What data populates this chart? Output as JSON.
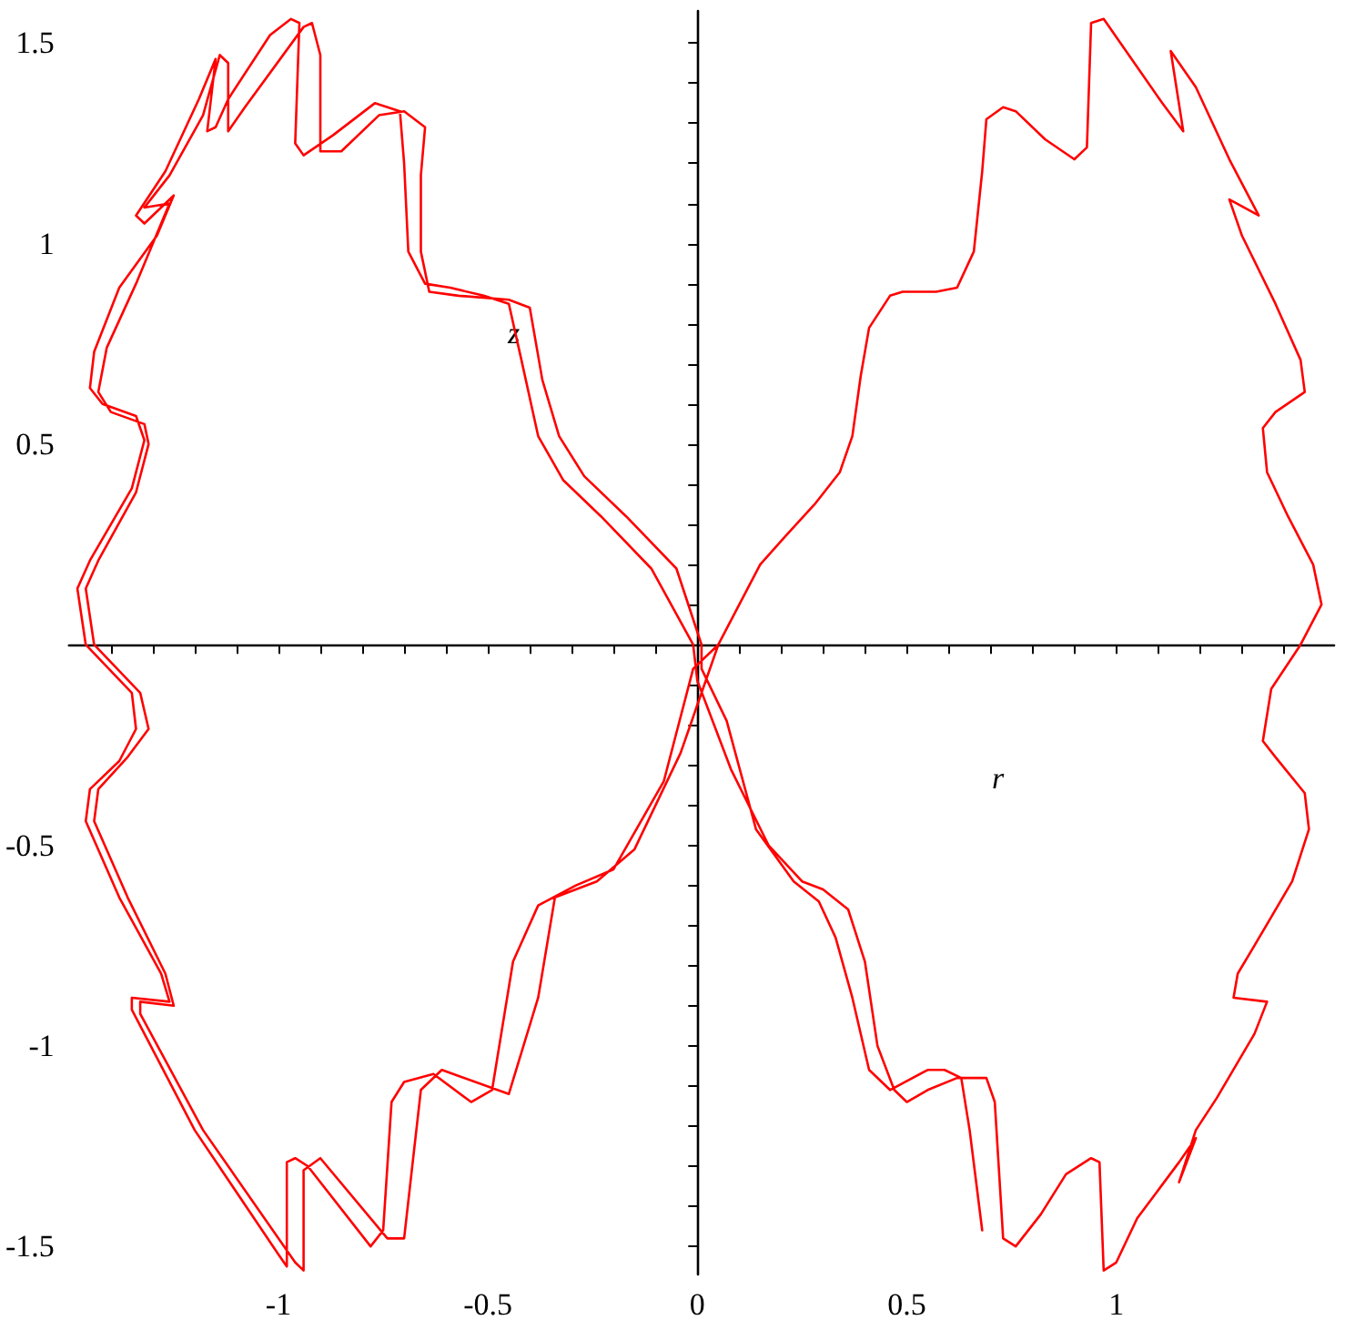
{
  "chart_data": {
    "type": "line",
    "xlabel": "r",
    "ylabel": "z",
    "xlim": [
      -1.5,
      1.52
    ],
    "ylim": [
      -1.57,
      1.58
    ],
    "xticks": [
      {
        "value": -1.4,
        "label": null
      },
      {
        "value": -1.3,
        "label": null
      },
      {
        "value": -1.2,
        "label": null
      },
      {
        "value": -1.1,
        "label": null
      },
      {
        "value": -1,
        "label": "-1"
      },
      {
        "value": -0.9,
        "label": null
      },
      {
        "value": -0.8,
        "label": null
      },
      {
        "value": -0.7,
        "label": null
      },
      {
        "value": -0.6,
        "label": null
      },
      {
        "value": -0.5,
        "label": "-0.5"
      },
      {
        "value": -0.4,
        "label": null
      },
      {
        "value": -0.3,
        "label": null
      },
      {
        "value": -0.2,
        "label": null
      },
      {
        "value": -0.1,
        "label": null
      },
      0,
      {
        "value": 0.1,
        "label": null
      },
      {
        "value": 0.2,
        "label": null
      },
      {
        "value": 0.3,
        "label": null
      },
      {
        "value": 0.4,
        "label": null
      },
      0.5,
      {
        "value": 0.6,
        "label": null
      },
      {
        "value": 0.7,
        "label": null
      },
      {
        "value": 0.8,
        "label": null
      },
      {
        "value": 0.9,
        "label": null
      },
      1,
      {
        "value": 1.1,
        "label": null
      },
      {
        "value": 1.2,
        "label": null
      },
      {
        "value": 1.3,
        "label": null
      },
      {
        "value": 1.4,
        "label": null
      }
    ],
    "yticks": [
      {
        "value": -1.5,
        "label": "-1.5"
      },
      {
        "value": -1.4,
        "label": null
      },
      {
        "value": -1.3,
        "label": null
      },
      {
        "value": -1.2,
        "label": null
      },
      {
        "value": -1.1,
        "label": null
      },
      {
        "value": -1,
        "label": "-1"
      },
      {
        "value": -0.9,
        "label": null
      },
      {
        "value": -0.8,
        "label": null
      },
      {
        "value": -0.7,
        "label": null
      },
      {
        "value": -0.6,
        "label": null
      },
      {
        "value": -0.5,
        "label": "-0.5"
      },
      {
        "value": -0.4,
        "label": null
      },
      {
        "value": -0.3,
        "label": null
      },
      {
        "value": -0.2,
        "label": null
      },
      {
        "value": -0.1,
        "label": null
      },
      {
        "value": 0.1,
        "label": null
      },
      {
        "value": 0.2,
        "label": null
      },
      {
        "value": 0.3,
        "label": null
      },
      {
        "value": 0.4,
        "label": null
      },
      0.5,
      {
        "value": 0.6,
        "label": null
      },
      {
        "value": 0.7,
        "label": null
      },
      {
        "value": 0.8,
        "label": null
      },
      {
        "value": 0.9,
        "label": null
      },
      1,
      {
        "value": 1.1,
        "label": null
      },
      {
        "value": 1.2,
        "label": null
      },
      {
        "value": 1.3,
        "label": null
      },
      {
        "value": 1.4,
        "label": null
      },
      1.5
    ],
    "marker": "none",
    "line_style": "solid",
    "series": [
      {
        "color": "#ff0000",
        "x": [
          0.68,
          0.65,
          0.63,
          0.59,
          0.55,
          0.46,
          0.41,
          0.37,
          0.33,
          0.29,
          0.23,
          0.14,
          0.07,
          0.01,
          0.01,
          -0.05,
          -0.17,
          -0.27,
          -0.33,
          -0.37,
          -0.4,
          -0.45,
          -0.57,
          -0.64,
          -0.66,
          -0.66,
          -0.65,
          -0.7,
          -0.76,
          -0.85,
          -0.9,
          -0.9,
          -0.92,
          -0.94,
          -1.08,
          -1.12,
          -1.12,
          -1.14,
          -1.18,
          -1.26,
          -1.32,
          -1.26,
          -1.34,
          -1.41,
          -1.43,
          -1.4,
          -1.32,
          -1.31,
          -1.34,
          -1.43,
          -1.46,
          -1.44,
          -1.33,
          -1.31,
          -1.36,
          -1.43,
          -1.44,
          -1.36,
          -1.27,
          -1.25,
          -1.33,
          -1.33,
          -1.18,
          -0.96,
          -0.94,
          -0.94,
          -0.9,
          -0.74,
          -0.7,
          -0.66,
          -0.61,
          -0.45,
          -0.38,
          -0.34,
          -0.24,
          -0.15,
          -0.04,
          0,
          0.05,
          0.15,
          0.21,
          0.28,
          0.34,
          0.37,
          0.39,
          0.41,
          0.46,
          0.49,
          0.57,
          0.62,
          0.66,
          0.68,
          0.69,
          0.73,
          0.76,
          0.83,
          0.9,
          0.93,
          0.94,
          0.97,
          1.01,
          1.11,
          1.16,
          1.13,
          1.19,
          1.27,
          1.34,
          1.27,
          1.3,
          1.38,
          1.44,
          1.45,
          1.38,
          1.35,
          1.36,
          1.41,
          1.47,
          1.49,
          1.44,
          1.37,
          1.35,
          1.38,
          1.45,
          1.46,
          1.42,
          1.33,
          1.29,
          1.28,
          1.36,
          1.33,
          1.24,
          1.19,
          1.15,
          1.19,
          1.15,
          1.05,
          1.0,
          0.97,
          0.96,
          0.94,
          0.88,
          0.82,
          0.76,
          0.73,
          0.71,
          0.69,
          0.62,
          0.55,
          0.5,
          0.47,
          0.43,
          0.4,
          0.36,
          0.3,
          0.25,
          0.17,
          0.08,
          0,
          -0.01,
          -0.11,
          -0.23,
          -0.32,
          -0.38,
          -0.42,
          -0.45,
          -0.51,
          -0.59,
          -0.65,
          -0.69,
          -0.7,
          -0.71,
          -0.77,
          -0.87,
          -0.94,
          -0.96,
          -0.95,
          -0.97,
          -1.02,
          -1.12,
          -1.15,
          -1.17,
          -1.15,
          -1.19,
          -1.27,
          -1.34,
          -1.32,
          -1.25,
          -1.29,
          -1.38,
          -1.44,
          -1.45,
          -1.42,
          -1.34,
          -1.32,
          -1.35,
          -1.45,
          -1.48,
          -1.46,
          -1.35,
          -1.34,
          -1.38,
          -1.45,
          -1.46,
          -1.38,
          -1.28,
          -1.26,
          -1.35,
          -1.35,
          -1.2,
          -1.0,
          -0.98,
          -0.98,
          -0.96,
          -0.93,
          -0.78,
          -0.75,
          -0.73,
          -0.7,
          -0.63,
          -0.54,
          -0.49,
          -0.44,
          -0.38,
          -0.29,
          -0.2,
          -0.08,
          -0.01,
          0.05
        ],
        "values": [
          -1.46,
          -1.21,
          -1.08,
          -1.06,
          -1.06,
          -1.11,
          -1.06,
          -0.88,
          -0.73,
          -0.64,
          -0.59,
          -0.46,
          -0.19,
          -0.06,
          0,
          0.19,
          0.32,
          0.42,
          0.52,
          0.66,
          0.84,
          0.86,
          0.87,
          0.88,
          0.98,
          1.17,
          1.29,
          1.33,
          1.32,
          1.23,
          1.23,
          1.47,
          1.55,
          1.54,
          1.34,
          1.28,
          1.45,
          1.47,
          1.32,
          1.17,
          1.09,
          1.1,
          0.9,
          0.74,
          0.63,
          0.58,
          0.55,
          0.5,
          0.38,
          0.21,
          0.14,
          0,
          -0.12,
          -0.21,
          -0.28,
          -0.36,
          -0.44,
          -0.63,
          -0.82,
          -0.9,
          -0.89,
          -0.92,
          -1.21,
          -1.54,
          -1.56,
          -1.31,
          -1.28,
          -1.48,
          -1.48,
          -1.11,
          -1.06,
          -1.12,
          -0.88,
          -0.63,
          -0.59,
          -0.51,
          -0.27,
          -0.15,
          0,
          0.2,
          0.27,
          0.35,
          0.43,
          0.52,
          0.67,
          0.79,
          0.87,
          0.88,
          0.88,
          0.89,
          0.98,
          1.18,
          1.31,
          1.34,
          1.33,
          1.26,
          1.21,
          1.24,
          1.55,
          1.56,
          1.5,
          1.35,
          1.28,
          1.48,
          1.39,
          1.21,
          1.07,
          1.11,
          1.02,
          0.85,
          0.71,
          0.63,
          0.58,
          0.54,
          0.43,
          0.32,
          0.2,
          0.1,
          0,
          -0.11,
          -0.24,
          -0.28,
          -0.37,
          -0.46,
          -0.59,
          -0.75,
          -0.82,
          -0.88,
          -0.89,
          -0.97,
          -1.13,
          -1.21,
          -1.34,
          -1.23,
          -1.29,
          -1.43,
          -1.54,
          -1.56,
          -1.29,
          -1.28,
          -1.32,
          -1.42,
          -1.5,
          -1.48,
          -1.14,
          -1.08,
          -1.08,
          -1.11,
          -1.14,
          -1.11,
          -1.0,
          -0.79,
          -0.66,
          -0.61,
          -0.59,
          -0.5,
          -0.31,
          -0.09,
          0,
          0.19,
          0.32,
          0.41,
          0.52,
          0.71,
          0.85,
          0.87,
          0.89,
          0.9,
          0.98,
          1.2,
          1.33,
          1.35,
          1.27,
          1.22,
          1.25,
          1.55,
          1.56,
          1.52,
          1.36,
          1.29,
          1.28,
          1.46,
          1.36,
          1.18,
          1.07,
          1.05,
          1.12,
          1.02,
          0.89,
          0.73,
          0.64,
          0.6,
          0.57,
          0.51,
          0.39,
          0.21,
          0.14,
          0,
          -0.12,
          -0.21,
          -0.29,
          -0.36,
          -0.44,
          -0.63,
          -0.82,
          -0.89,
          -0.88,
          -0.91,
          -1.21,
          -1.52,
          -1.55,
          -1.29,
          -1.28,
          -1.3,
          -1.5,
          -1.46,
          -1.14,
          -1.09,
          -1.07,
          -1.14,
          -1.11,
          -0.79,
          -0.65,
          -0.6,
          -0.56,
          -0.34,
          -0.06,
          0
        ]
      }
    ]
  }
}
